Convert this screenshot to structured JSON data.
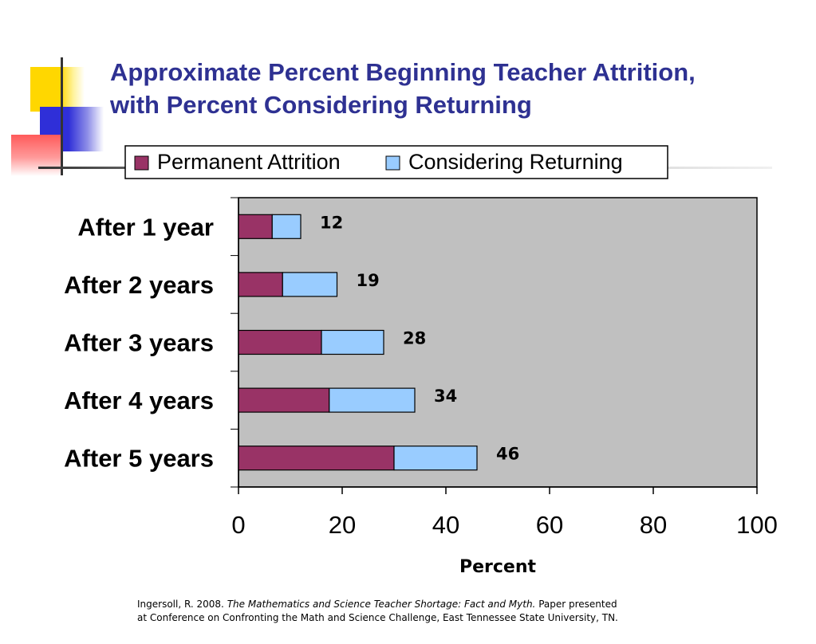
{
  "title": {
    "line1": "Approximate Percent Beginning Teacher Attrition,",
    "line2": "with Percent Considering Returning"
  },
  "citation": {
    "line1_prefix": "Ingersoll, R. 2008. ",
    "line1_italic": "The Mathematics and Science Teacher Shortage: Fact and Myth.",
    "line1_suffix": " Paper presented",
    "line2": "at Conference on Confronting the Math and Science Challenge, East Tennessee State University, TN."
  },
  "colors": {
    "title": "#2e3192",
    "plot_background": "#c0c0c0",
    "permanent_attrition": "#993366",
    "considering_returning": "#99ccff"
  },
  "chart_data": {
    "type": "bar",
    "orientation": "horizontal",
    "stacked": true,
    "categories": [
      "After 1 year",
      "After 2 years",
      "After 3 years",
      "After 4 years",
      "After 5 years"
    ],
    "series": [
      {
        "name": "Permanent Attrition",
        "values": [
          6.5,
          8.5,
          16,
          17.5,
          30
        ]
      },
      {
        "name": "Considering Returning",
        "values": [
          5.5,
          10.5,
          12,
          16.5,
          16
        ]
      }
    ],
    "totals": [
      "12",
      "19",
      "28",
      "34",
      "46"
    ],
    "xlabel": "Percent",
    "xlim": [
      0,
      100
    ],
    "xticks": [
      "0",
      "20",
      "40",
      "60",
      "80",
      "100"
    ],
    "legend_position": "top",
    "grid": false
  }
}
